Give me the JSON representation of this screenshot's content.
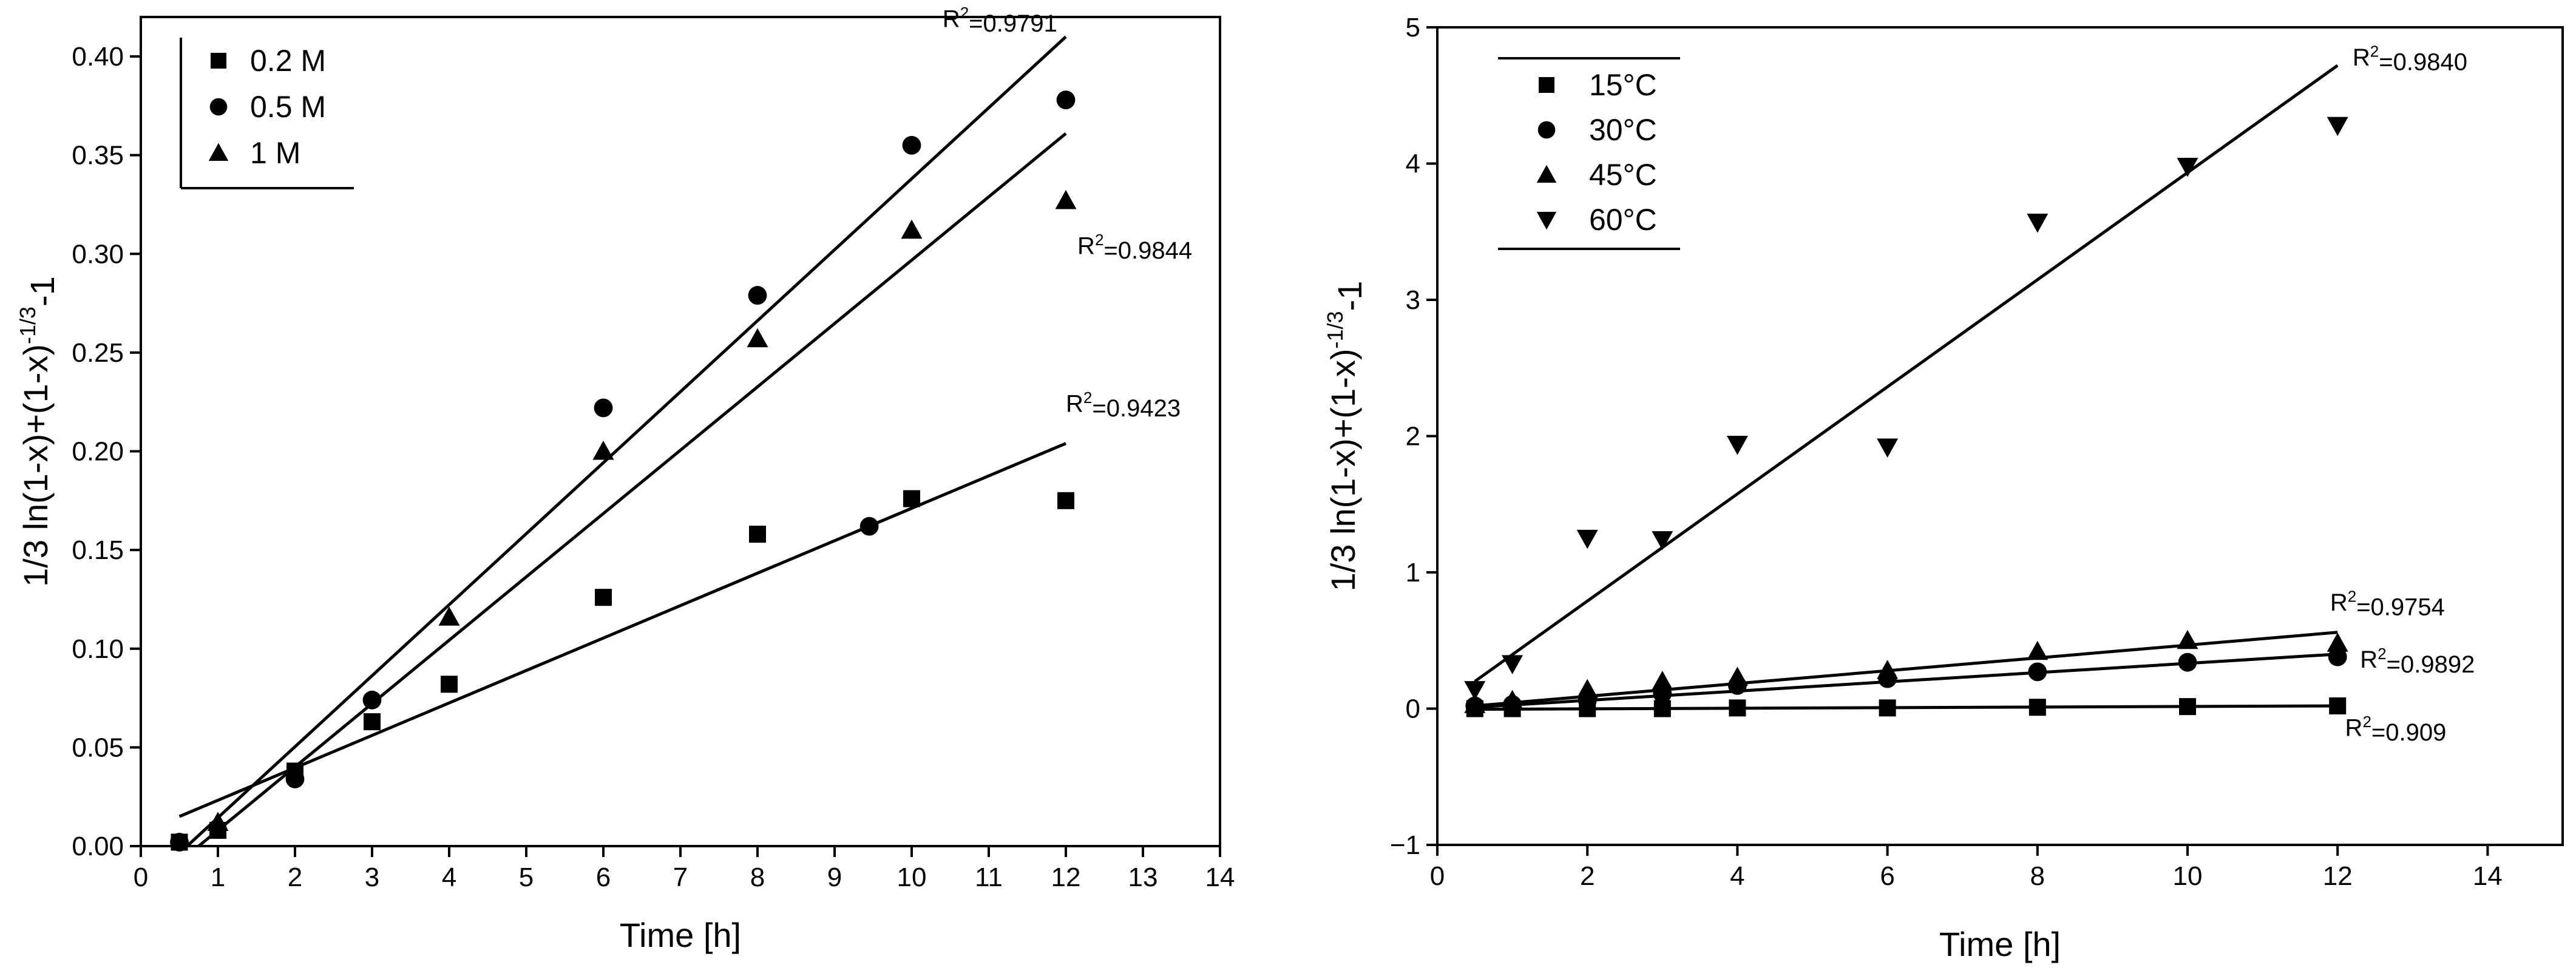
{
  "chart_data": [
    {
      "type": "scatter",
      "panel": "left",
      "title": "",
      "xlabel": "Time [h]",
      "ylabel": "1/3 ln(1-x)+(1-x)^-1/3-1",
      "ylabel_parts": {
        "main": "1/3 ln(1-x)+(1-x)",
        "sup": "-1/3",
        "tail": "-1"
      },
      "xlim": [
        0,
        14
      ],
      "ylim": [
        0,
        0.42
      ],
      "xticks": [
        0,
        1,
        2,
        3,
        4,
        5,
        6,
        7,
        8,
        9,
        10,
        11,
        12,
        13,
        14
      ],
      "xtick_labels": [
        "0",
        "1",
        "2",
        "3",
        "4",
        "5",
        "6",
        "7",
        "8",
        "9",
        "10",
        "11",
        "12",
        "13",
        "14"
      ],
      "yticks": [
        0,
        0.05,
        0.1,
        0.15,
        0.2,
        0.25,
        0.3,
        0.35,
        0.4
      ],
      "ytick_labels": [
        "0.00",
        "0.05",
        "0.10",
        "0.15",
        "0.20",
        "0.25",
        "0.30",
        "0.35",
        "0.40"
      ],
      "grid": false,
      "legend_position": "top-left",
      "series": [
        {
          "name": "0.2 M",
          "marker": "square",
          "x": [
            0.5,
            1,
            2,
            3,
            4,
            6,
            8,
            10,
            12
          ],
          "y": [
            0.002,
            0.008,
            0.038,
            0.063,
            0.082,
            0.126,
            0.158,
            0.176,
            0.175
          ],
          "fit": {
            "x": [
              0.5,
              12
            ],
            "y": [
              0.015,
              0.204
            ]
          },
          "r2": {
            "prefix": "R",
            "sup": "2",
            "value": "=0.9423",
            "at": [
              12,
              0.22
            ]
          }
        },
        {
          "name": "0.5 M",
          "marker": "circle",
          "x": [
            0.5,
            2,
            3,
            6,
            8,
            9.45,
            10,
            12
          ],
          "y": [
            0.002,
            0.034,
            0.074,
            0.222,
            0.279,
            0.162,
            0.355,
            0.378
          ],
          "fit": {
            "x": [
              0.6,
              12
            ],
            "y": [
              0.0,
              0.41
            ]
          },
          "r2": {
            "prefix": "R",
            "sup": "2",
            "value": "=0.9791",
            "at": [
              10.4,
              0.415
            ]
          }
        },
        {
          "name": "1 M",
          "marker": "triangle",
          "x": [
            1,
            4,
            6,
            8,
            10,
            12
          ],
          "y": [
            0.012,
            0.116,
            0.2,
            0.257,
            0.312,
            0.327
          ],
          "fit": {
            "x": [
              0.75,
              12
            ],
            "y": [
              0.0,
              0.361
            ]
          },
          "r2": {
            "prefix": "R",
            "sup": "2",
            "value": "=0.9844",
            "at": [
              12.15,
              0.3
            ]
          }
        }
      ]
    },
    {
      "type": "scatter",
      "panel": "right",
      "title": "",
      "xlabel": "Time [h]",
      "ylabel": "1/3 ln(1-x)+(1-x)^-1/3-1",
      "ylabel_parts": {
        "main": "1/3 ln(1-x)+(1-x)",
        "sup": "-1/3",
        "tail": "-1"
      },
      "xlim": [
        0,
        15
      ],
      "ylim": [
        -1,
        5
      ],
      "xticks": [
        0,
        2,
        4,
        6,
        8,
        10,
        12,
        14
      ],
      "xtick_labels": [
        "0",
        "2",
        "4",
        "6",
        "8",
        "10",
        "12",
        "14"
      ],
      "yticks": [
        -1,
        0,
        1,
        2,
        3,
        4,
        5
      ],
      "ytick_labels": [
        "−1",
        "0",
        "1",
        "2",
        "3",
        "4",
        "5"
      ],
      "grid": false,
      "legend_position": "top-left",
      "series": [
        {
          "name": "15°C",
          "marker": "square",
          "x": [
            0.5,
            1,
            2,
            3,
            4,
            6,
            8,
            10,
            12
          ],
          "y": [
            0.0,
            0.0,
            0.0,
            0.0,
            0.005,
            0.005,
            0.01,
            0.015,
            0.02
          ],
          "fit": {
            "x": [
              0.5,
              12
            ],
            "y": [
              -0.005,
              0.02
            ]
          },
          "r2": {
            "prefix": "R",
            "sup": "2",
            "value": "=0.909",
            "at": [
              12.1,
              -0.2
            ]
          }
        },
        {
          "name": "30°C",
          "marker": "circle",
          "x": [
            0.5,
            1,
            2,
            3,
            4,
            6,
            8,
            10,
            12
          ],
          "y": [
            0.02,
            0.03,
            0.06,
            0.11,
            0.17,
            0.22,
            0.27,
            0.34,
            0.38
          ],
          "fit": {
            "x": [
              0.5,
              12
            ],
            "y": [
              0.01,
              0.4
            ]
          },
          "r2": {
            "prefix": "R",
            "sup": "2",
            "value": "=0.9892",
            "at": [
              12.3,
              0.3
            ]
          }
        },
        {
          "name": "45°C",
          "marker": "triangle",
          "x": [
            0.5,
            1,
            2,
            3,
            4,
            6,
            8,
            10,
            12
          ],
          "y": [
            0.03,
            0.06,
            0.14,
            0.2,
            0.23,
            0.28,
            0.42,
            0.5,
            0.48
          ],
          "fit": {
            "x": [
              0.5,
              12
            ],
            "y": [
              0.02,
              0.56
            ]
          },
          "r2": {
            "prefix": "R",
            "sup": "2",
            "value": "=0.9754",
            "at": [
              11.9,
              0.72
            ]
          }
        },
        {
          "name": "60°C",
          "marker": "triangle-down",
          "x": [
            0.5,
            1,
            2,
            3,
            4,
            6,
            8,
            10,
            12
          ],
          "y": [
            0.14,
            0.33,
            1.25,
            1.24,
            1.94,
            1.92,
            3.57,
            3.98,
            4.28
          ],
          "fit": {
            "x": [
              0.5,
              12
            ],
            "y": [
              0.2,
              4.72
            ]
          },
          "r2": {
            "prefix": "R",
            "sup": "2",
            "value": "=0.9840",
            "at": [
              12.2,
              4.72
            ]
          }
        }
      ]
    }
  ]
}
